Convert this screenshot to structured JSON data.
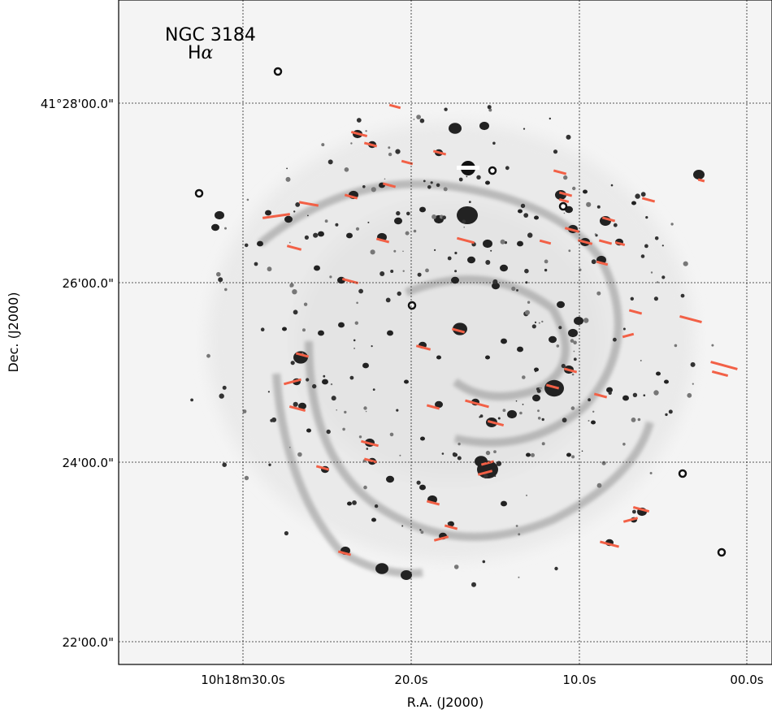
{
  "panel": {
    "object_name": "NGC 3184",
    "band_prefix": "H",
    "band_symbol": "α"
  },
  "axes": {
    "xlabel": "R.A. (J2000)",
    "ylabel": "Dec.  (J2000)",
    "x_ticks": [
      "10h18m30.0s",
      "20.0s",
      "10.0s",
      "00.0s"
    ],
    "y_ticks": [
      "41°28'00.0\"",
      "26'00.0\"",
      "24'00.0\"",
      "22'00.0\""
    ],
    "grid": true
  },
  "colors": {
    "marker": "#f26046",
    "emission": "#222222",
    "background": "#f4f4f4",
    "frame": "#000000"
  },
  "image": {
    "description_kind": "inverted grayscale narrow-band galaxy image with emission-region markers"
  }
}
